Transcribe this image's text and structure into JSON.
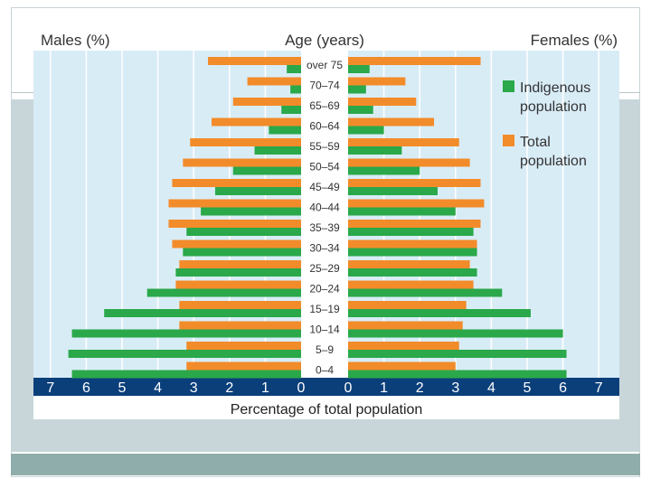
{
  "chart_data": {
    "type": "bar",
    "subtype": "population-pyramid",
    "header": {
      "left": "Males (%)",
      "center": "Age (years)",
      "right": "Females  (%)"
    },
    "xlabel": "Percentage of total population",
    "xlim": [
      0,
      7
    ],
    "xticks_left": [
      "7",
      "6",
      "5",
      "4",
      "3",
      "2",
      "1",
      "0"
    ],
    "xticks_right": [
      "0",
      "1",
      "2",
      "3",
      "4",
      "5",
      "6",
      "7"
    ],
    "categories": [
      "over 75",
      "70–74",
      "65–69",
      "60–64",
      "55–59",
      "50–54",
      "45–49",
      "40–44",
      "35–39",
      "30–34",
      "25–29",
      "20–24",
      "15–19",
      "10–14",
      "5–9",
      "0–4"
    ],
    "series": [
      {
        "name": "Indigenous population",
        "color": "#2aa84a",
        "males": [
          0.4,
          0.3,
          0.55,
          0.9,
          1.3,
          1.9,
          2.4,
          2.8,
          3.2,
          3.3,
          3.5,
          4.3,
          5.5,
          6.4,
          6.5,
          6.4
        ],
        "females": [
          0.6,
          0.5,
          0.7,
          1.0,
          1.5,
          2.0,
          2.5,
          3.0,
          3.5,
          3.6,
          3.6,
          4.3,
          5.1,
          6.0,
          6.1,
          6.1
        ]
      },
      {
        "name": "Total population",
        "color": "#f28b2a",
        "males": [
          2.6,
          1.5,
          1.9,
          2.5,
          3.1,
          3.3,
          3.6,
          3.7,
          3.7,
          3.6,
          3.4,
          3.5,
          3.4,
          3.4,
          3.2,
          3.2
        ],
        "females": [
          3.7,
          1.6,
          1.9,
          2.4,
          3.1,
          3.4,
          3.7,
          3.8,
          3.7,
          3.6,
          3.4,
          3.5,
          3.3,
          3.2,
          3.1,
          3.0
        ]
      }
    ],
    "legend": [
      {
        "line1": "Indigenous",
        "line2": "population",
        "color": "#2aa84a"
      },
      {
        "line1": "Total",
        "line2": "population",
        "color": "#f28b2a"
      }
    ],
    "legend_position": "top-right"
  }
}
